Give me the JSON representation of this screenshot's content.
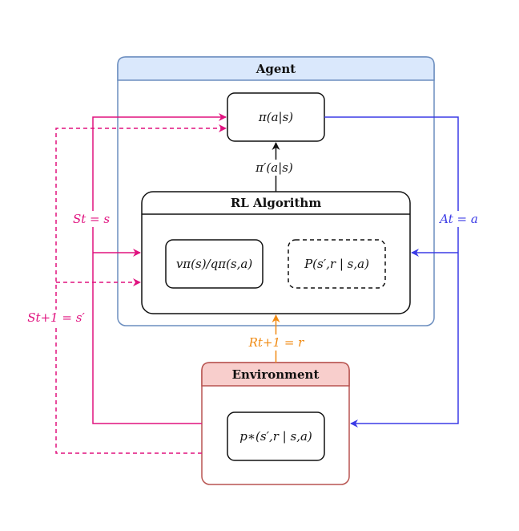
{
  "diagram": {
    "agent": {
      "title": "Agent"
    },
    "policy": {
      "label": "π(a|s)"
    },
    "rl_algorithm": {
      "title": "RL Algorithm"
    },
    "value_function": {
      "label": "vπ(s)/qπ(s,a)"
    },
    "model": {
      "label": "P(s′,r | s,a)"
    },
    "environment": {
      "title": "Environment"
    },
    "dynamics": {
      "label": "p∗(s′,r | s,a)"
    },
    "edges": {
      "policy_update": "π′(a|s)",
      "state": "St = s",
      "next_state": "St+1 = s′",
      "action": "At = a",
      "reward": "Rt+1 = r"
    }
  },
  "colors": {
    "state": "#e0127f",
    "action": "#3b3be6",
    "reward": "#f08a12",
    "agent_header": "#dae8fc",
    "agent_border": "#6c8ebf",
    "env_header": "#f8cecc",
    "env_border": "#b85450"
  }
}
